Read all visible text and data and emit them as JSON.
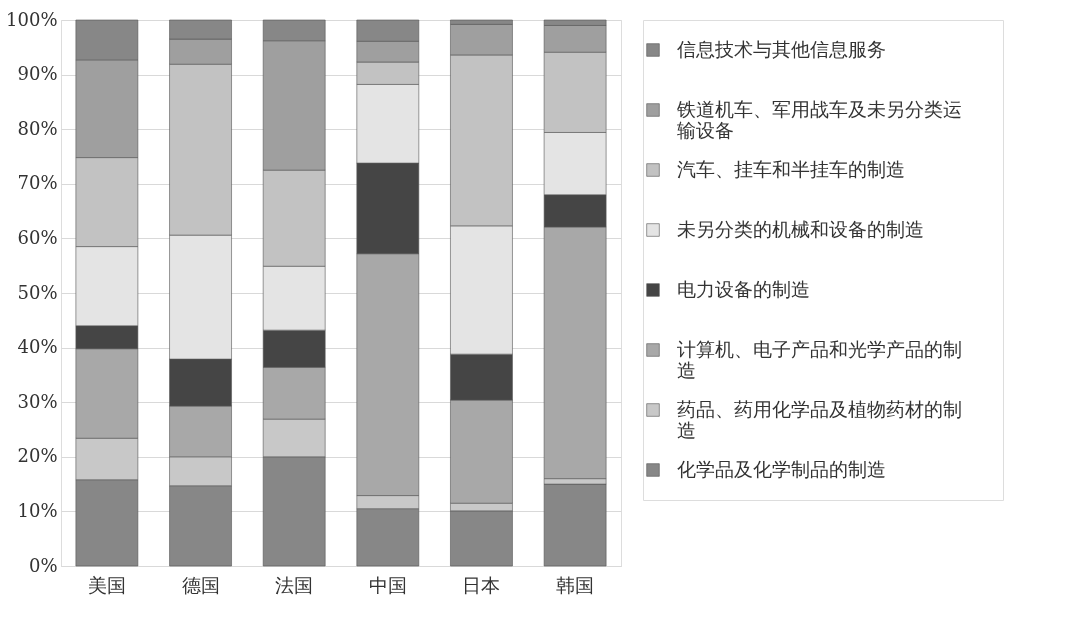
{
  "chart_data": {
    "type": "bar",
    "stacked": true,
    "categories": [
      "美国",
      "德国",
      "法国",
      "中国",
      "日本",
      "韩国"
    ],
    "series": [
      {
        "name": "化学品及化学制品的制造",
        "color": "#878787",
        "values": [
          15.8,
          14.7,
          20.0,
          10.5,
          10.1,
          15.0
        ]
      },
      {
        "name": "药品、药用化学品及植物药材的制造",
        "color": "#c8c8c8",
        "values": [
          7.6,
          5.3,
          6.9,
          2.4,
          1.4,
          1.0
        ]
      },
      {
        "name": "计算机、电子产品和光学产品的制造",
        "color": "#a8a8a8",
        "values": [
          16.4,
          9.3,
          9.5,
          44.3,
          18.9,
          46.1
        ]
      },
      {
        "name": "电力设备的制造",
        "color": "#454545",
        "values": [
          4.2,
          8.6,
          6.8,
          16.6,
          8.4,
          5.9
        ]
      },
      {
        "name": "未另分类的机械和设备的制造",
        "color": "#e4e4e4",
        "values": [
          14.5,
          22.7,
          11.7,
          14.4,
          23.5,
          11.4
        ]
      },
      {
        "name": "汽车、挂车和半挂车的制造",
        "color": "#c2c2c2",
        "values": [
          16.3,
          31.3,
          17.6,
          4.1,
          31.3,
          14.7
        ]
      },
      {
        "name": "铁道机车、军用战车及未另分类运输设备",
        "color": "#9f9f9f",
        "values": [
          17.9,
          4.6,
          23.7,
          3.8,
          5.6,
          4.9
        ]
      },
      {
        "name": "信息技术与其他信息服务",
        "color": "#878787",
        "values": [
          7.3,
          3.5,
          3.8,
          3.9,
          0.8,
          1.0
        ]
      }
    ],
    "ylim": [
      0,
      100
    ],
    "yticks": [
      {
        "value": 0,
        "label": "0%"
      },
      {
        "value": 10,
        "label": "10%"
      },
      {
        "value": 20,
        "label": "20%"
      },
      {
        "value": 30,
        "label": "30%"
      },
      {
        "value": 40,
        "label": "40%"
      },
      {
        "value": 50,
        "label": "50%"
      },
      {
        "value": 60,
        "label": "60%"
      },
      {
        "value": 70,
        "label": "70%"
      },
      {
        "value": 80,
        "label": "80%"
      },
      {
        "value": 90,
        "label": "90%"
      },
      {
        "value": 100,
        "label": "100%"
      }
    ],
    "grid": "y",
    "legend": "right"
  }
}
